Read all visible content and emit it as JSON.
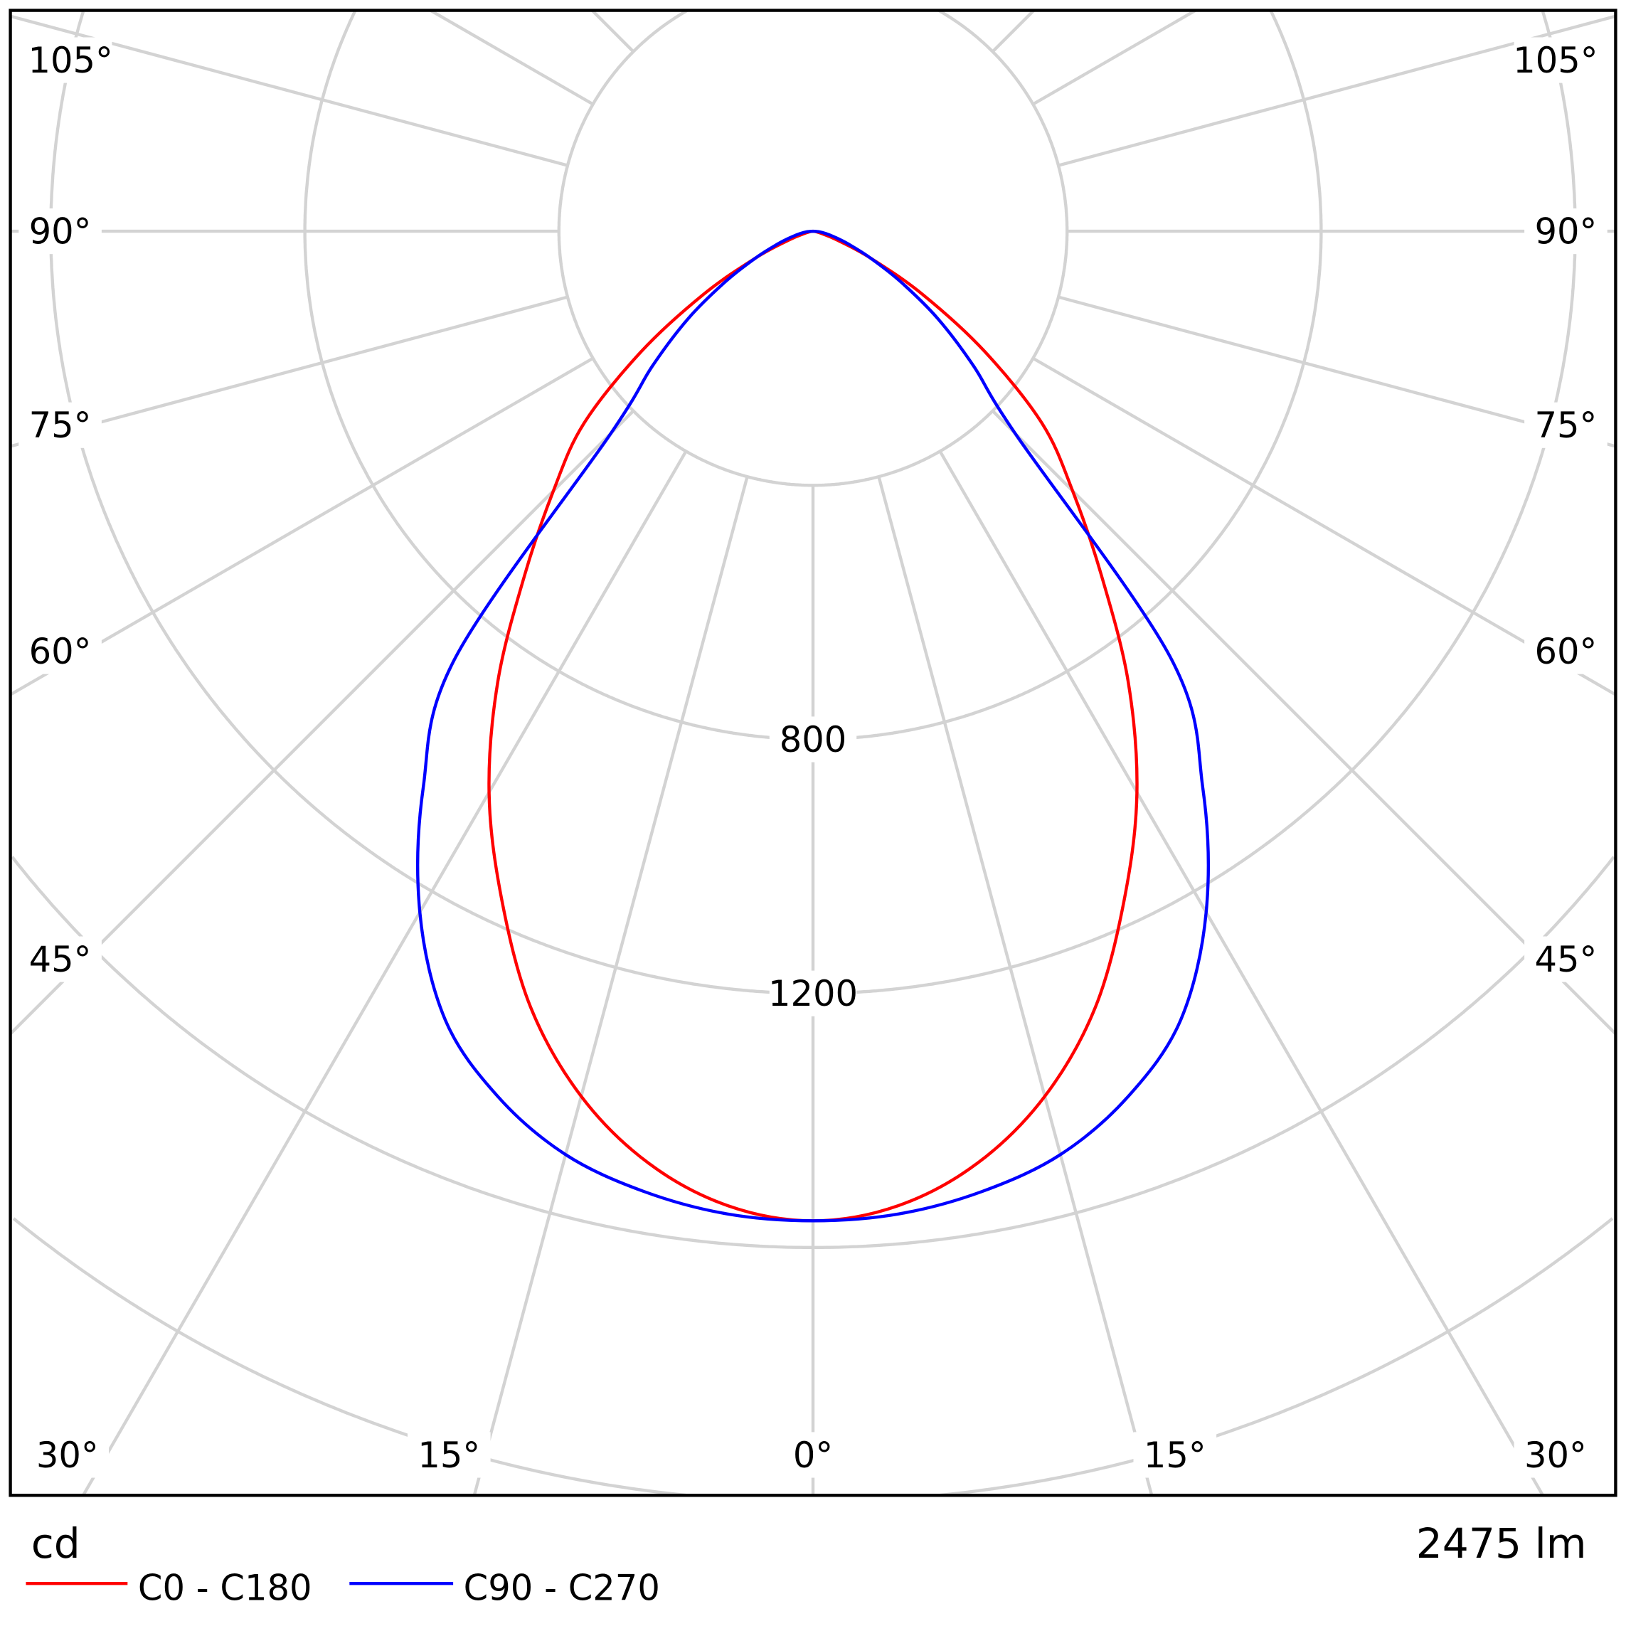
{
  "chart_data": {
    "type": "polar-line",
    "unit_label": "cd",
    "flux_label": "2475 lm",
    "radial_tick_labels": [
      "800",
      "1200"
    ],
    "radial_step": 400,
    "radial_max": 2400,
    "angle_tick_labels": {
      "0": "0°",
      "15": "15°",
      "30": "30°",
      "45": "45°",
      "60": "60°",
      "75": "75°",
      "90": "90°",
      "105": "105°"
    },
    "grid": true,
    "legend_position": "bottom-left",
    "gamma": [
      0,
      5,
      10,
      15,
      20,
      25,
      30,
      35,
      40,
      45,
      50,
      55,
      60,
      65,
      70,
      75,
      80,
      85,
      90
    ],
    "series": [
      {
        "name": "C0 - C180",
        "color": "#ff0000",
        "values": [
          1558,
          1540,
          1490,
          1410,
          1300,
          1160,
          1020,
          865,
          706,
          578,
          471,
          330,
          200,
          100,
          40,
          15,
          6,
          2,
          0
        ]
      },
      {
        "name": "C90 - C270",
        "color": "#0000ff",
        "values": [
          1558,
          1553,
          1535,
          1505,
          1450,
          1370,
          1238,
          1070,
          875,
          450,
          330,
          240,
          160,
          100,
          60,
          35,
          20,
          10,
          0
        ]
      }
    ]
  }
}
